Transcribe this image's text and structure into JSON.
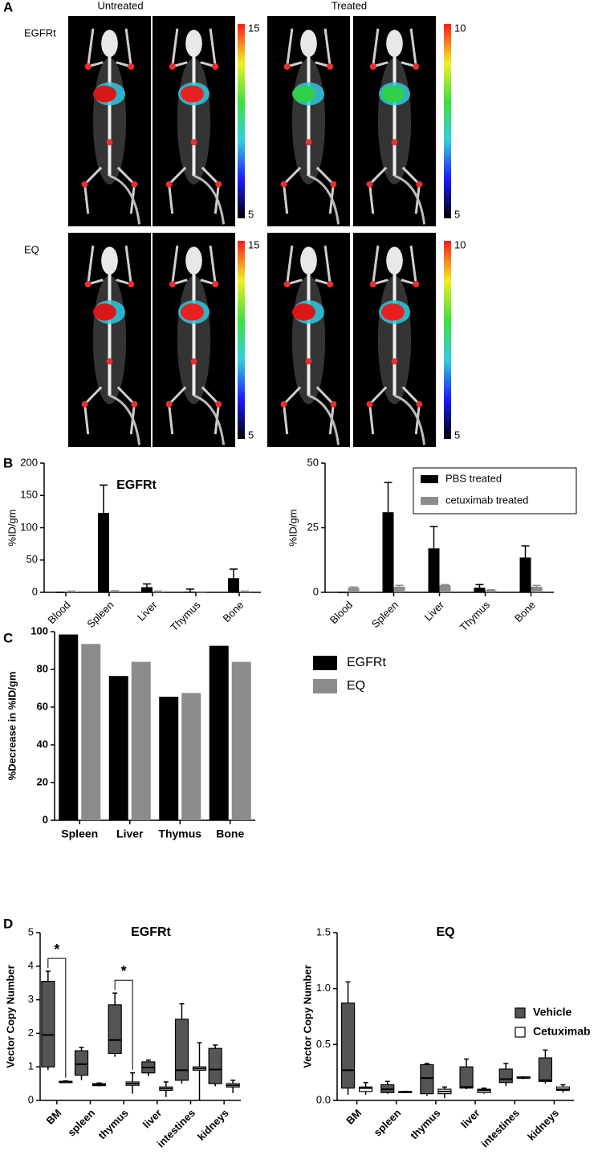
{
  "panel_labels": [
    "A",
    "B",
    "C",
    "D"
  ],
  "imaging": {
    "columns": [
      "Untreated",
      "Treated"
    ],
    "rows": [
      {
        "label": "EGFRt",
        "scale_max": [
          15,
          10
        ],
        "scale_min": [
          5,
          5
        ]
      },
      {
        "label": "EQ",
        "scale_max": [
          15,
          10
        ],
        "scale_min": [
          5,
          5
        ]
      }
    ]
  },
  "chart_data": [
    {
      "type": "bar",
      "title": "EGFRt",
      "y_label": "%ID/gm",
      "categories": [
        "Blood",
        "Spleen",
        "Liver",
        "Thymus",
        "Bone"
      ],
      "series": [
        {
          "color": "#000000",
          "values": [
            0,
            123,
            8,
            1,
            22
          ],
          "errors": [
            0,
            43,
            5,
            4,
            14
          ]
        },
        {
          "color": "#8c8c8c",
          "values": [
            1.5,
            2,
            1.5,
            0.5,
            1.5
          ],
          "errors": [
            0.5,
            0.5,
            0.5,
            0.3,
            0.5
          ]
        }
      ],
      "ylim": [
        0,
        200
      ],
      "yticks": [
        0,
        50,
        100,
        150,
        200
      ]
    },
    {
      "type": "bar",
      "title": "EQ",
      "y_label": "%ID/gm",
      "categories": [
        "Blood",
        "Spleen",
        "Liver",
        "Thymus",
        "Bone"
      ],
      "series": [
        {
          "name": "PBS treated",
          "color": "#000000",
          "values": [
            0,
            31,
            17,
            1.8,
            13.5
          ],
          "errors": [
            0,
            11.5,
            8.5,
            1.2,
            4.5
          ]
        },
        {
          "name": "cetuximab treated",
          "color": "#8c8c8c",
          "values": [
            1.8,
            2.2,
            2.8,
            0.8,
            2.2
          ],
          "errors": [
            0.3,
            0.5,
            0.2,
            0.2,
            0.5
          ]
        }
      ],
      "ylim": [
        0,
        50
      ],
      "yticks": [
        0,
        25,
        50
      ],
      "legend": "upper right"
    },
    {
      "type": "bar",
      "y_label": "%Decrease in %ID/gm",
      "categories": [
        "Spleen",
        "Liver",
        "Thymus",
        "Bone"
      ],
      "series": [
        {
          "name": "EGFRt",
          "color": "#000000",
          "values": [
            98.5,
            76.5,
            65.5,
            92.5
          ]
        },
        {
          "name": "EQ",
          "color": "#8c8c8c",
          "values": [
            93.5,
            84,
            67.5,
            84
          ]
        }
      ],
      "ylim": [
        0,
        100
      ],
      "yticks": [
        0,
        20,
        40,
        60,
        80,
        100
      ],
      "legend": "right"
    },
    {
      "type": "box",
      "title": "EGFRt",
      "y_label": "Vector Copy Number",
      "categories": [
        "BM",
        "spleen",
        "thymus",
        "liver",
        "intestines",
        "kidneys"
      ],
      "series": [
        {
          "color": "#555555",
          "values": [
            {
              "min": 0.9,
              "q1": 1.0,
              "median": 1.95,
              "q3": 3.55,
              "max": 3.85
            },
            {
              "min": 0.6,
              "q1": 0.75,
              "median": 1.08,
              "q3": 1.48,
              "max": 1.58
            },
            {
              "min": 1.3,
              "q1": 1.4,
              "median": 1.8,
              "q3": 2.85,
              "max": 3.2
            },
            {
              "min": 0.72,
              "q1": 0.82,
              "median": 0.98,
              "q3": 1.15,
              "max": 1.2
            },
            {
              "min": 0.5,
              "q1": 0.6,
              "median": 0.9,
              "q3": 2.42,
              "max": 2.88
            },
            {
              "min": 0.42,
              "q1": 0.5,
              "median": 0.92,
              "q3": 1.55,
              "max": 1.65
            }
          ]
        },
        {
          "color": "#ffffff",
          "values": [
            {
              "min": 0.52,
              "q1": 0.53,
              "median": 0.55,
              "q3": 0.57,
              "max": 0.58
            },
            {
              "min": 0.42,
              "q1": 0.44,
              "median": 0.47,
              "q3": 0.5,
              "max": 0.52
            },
            {
              "min": 0.2,
              "q1": 0.45,
              "median": 0.5,
              "q3": 0.55,
              "max": 0.82
            },
            {
              "min": 0.1,
              "q1": 0.3,
              "median": 0.35,
              "q3": 0.4,
              "max": 0.55
            },
            {
              "min": 0.0,
              "q1": 0.9,
              "median": 0.95,
              "q3": 1.0,
              "max": 1.72
            },
            {
              "min": 0.22,
              "q1": 0.4,
              "median": 0.45,
              "q3": 0.5,
              "max": 0.6
            }
          ]
        }
      ],
      "ylim": [
        0,
        5
      ],
      "yticks": [
        0,
        1,
        2,
        3,
        4,
        5
      ],
      "annotations": [
        "*",
        "*"
      ]
    },
    {
      "type": "box",
      "title": "EQ",
      "y_label": "Vector Copy Number",
      "categories": [
        "BM",
        "spleen",
        "thymus",
        "liver",
        "intestines",
        "kidneys"
      ],
      "series": [
        {
          "name": "Vehicle",
          "color": "#555555",
          "values": [
            {
              "min": 0.05,
              "q1": 0.11,
              "median": 0.27,
              "q3": 0.87,
              "max": 1.06
            },
            {
              "min": 0.06,
              "q1": 0.07,
              "median": 0.1,
              "q3": 0.14,
              "max": 0.17
            },
            {
              "min": 0.04,
              "q1": 0.06,
              "median": 0.2,
              "q3": 0.32,
              "max": 0.33
            },
            {
              "min": 0.1,
              "q1": 0.11,
              "median": 0.12,
              "q3": 0.3,
              "max": 0.37
            },
            {
              "min": 0.13,
              "q1": 0.16,
              "median": 0.19,
              "q3": 0.28,
              "max": 0.33
            },
            {
              "min": 0.15,
              "q1": 0.17,
              "median": 0.18,
              "q3": 0.38,
              "max": 0.45
            }
          ]
        },
        {
          "name": "Cetuximab",
          "color": "#ffffff",
          "values": [
            {
              "min": 0.05,
              "q1": 0.08,
              "median": 0.11,
              "q3": 0.12,
              "max": 0.16
            },
            {
              "min": 0.07,
              "q1": 0.07,
              "median": 0.075,
              "q3": 0.08,
              "max": 0.08
            },
            {
              "min": 0.02,
              "q1": 0.06,
              "median": 0.08,
              "q3": 0.1,
              "max": 0.12
            },
            {
              "min": 0.06,
              "q1": 0.07,
              "median": 0.09,
              "q3": 0.1,
              "max": 0.11
            },
            {
              "min": 0.19,
              "q1": 0.2,
              "median": 0.2,
              "q3": 0.21,
              "max": 0.21
            },
            {
              "min": 0.07,
              "q1": 0.09,
              "median": 0.1,
              "q3": 0.12,
              "max": 0.14
            }
          ]
        }
      ],
      "ylim": [
        0,
        1.5
      ],
      "yticks": [
        {
          "value": 0,
          "label": "0.0"
        },
        0.5,
        {
          "value": 1,
          "label": "1.0"
        },
        1.5
      ],
      "legend": "right"
    }
  ]
}
